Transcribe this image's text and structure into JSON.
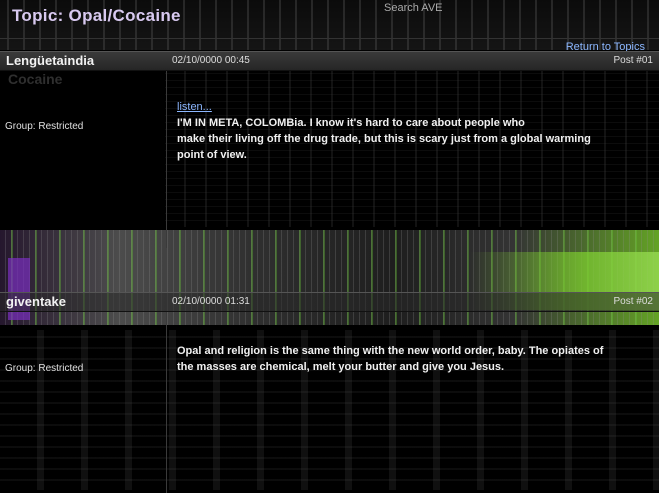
{
  "topic": {
    "title": "Topic:  Opal/Cocaine",
    "search_label": "Search AVE",
    "return_link": "Return to Topics"
  },
  "posts": [
    {
      "author": "Lengüetaindia",
      "date": "02/10/0000 00:45",
      "post_number": "Post #01",
      "group": "Group:  Restricted",
      "ghost_text": "Cocaine",
      "link_text": "listen...",
      "body_lines": [
        "I'M IN META, COLOMBia. I know it's hard to care about people who",
        "make their living off the drug trade, but this is scary just from a global warming",
        "point of view."
      ]
    },
    {
      "author": "giventake",
      "date": "02/10/0000 01:31",
      "post_number": "Post #02",
      "group": "Group:  Restricted",
      "body_lines": [
        "Opal and religion is the same thing with the new world order, baby. The opiates of",
        "the masses are chemical, melt your butter and give you Jesus."
      ]
    }
  ],
  "colors": {
    "background": "#000000",
    "link": "#8cb7ff",
    "title": "#d8c9f0",
    "glitch_green": "#7ccc2e",
    "glitch_purple": "#7b2fc0"
  }
}
